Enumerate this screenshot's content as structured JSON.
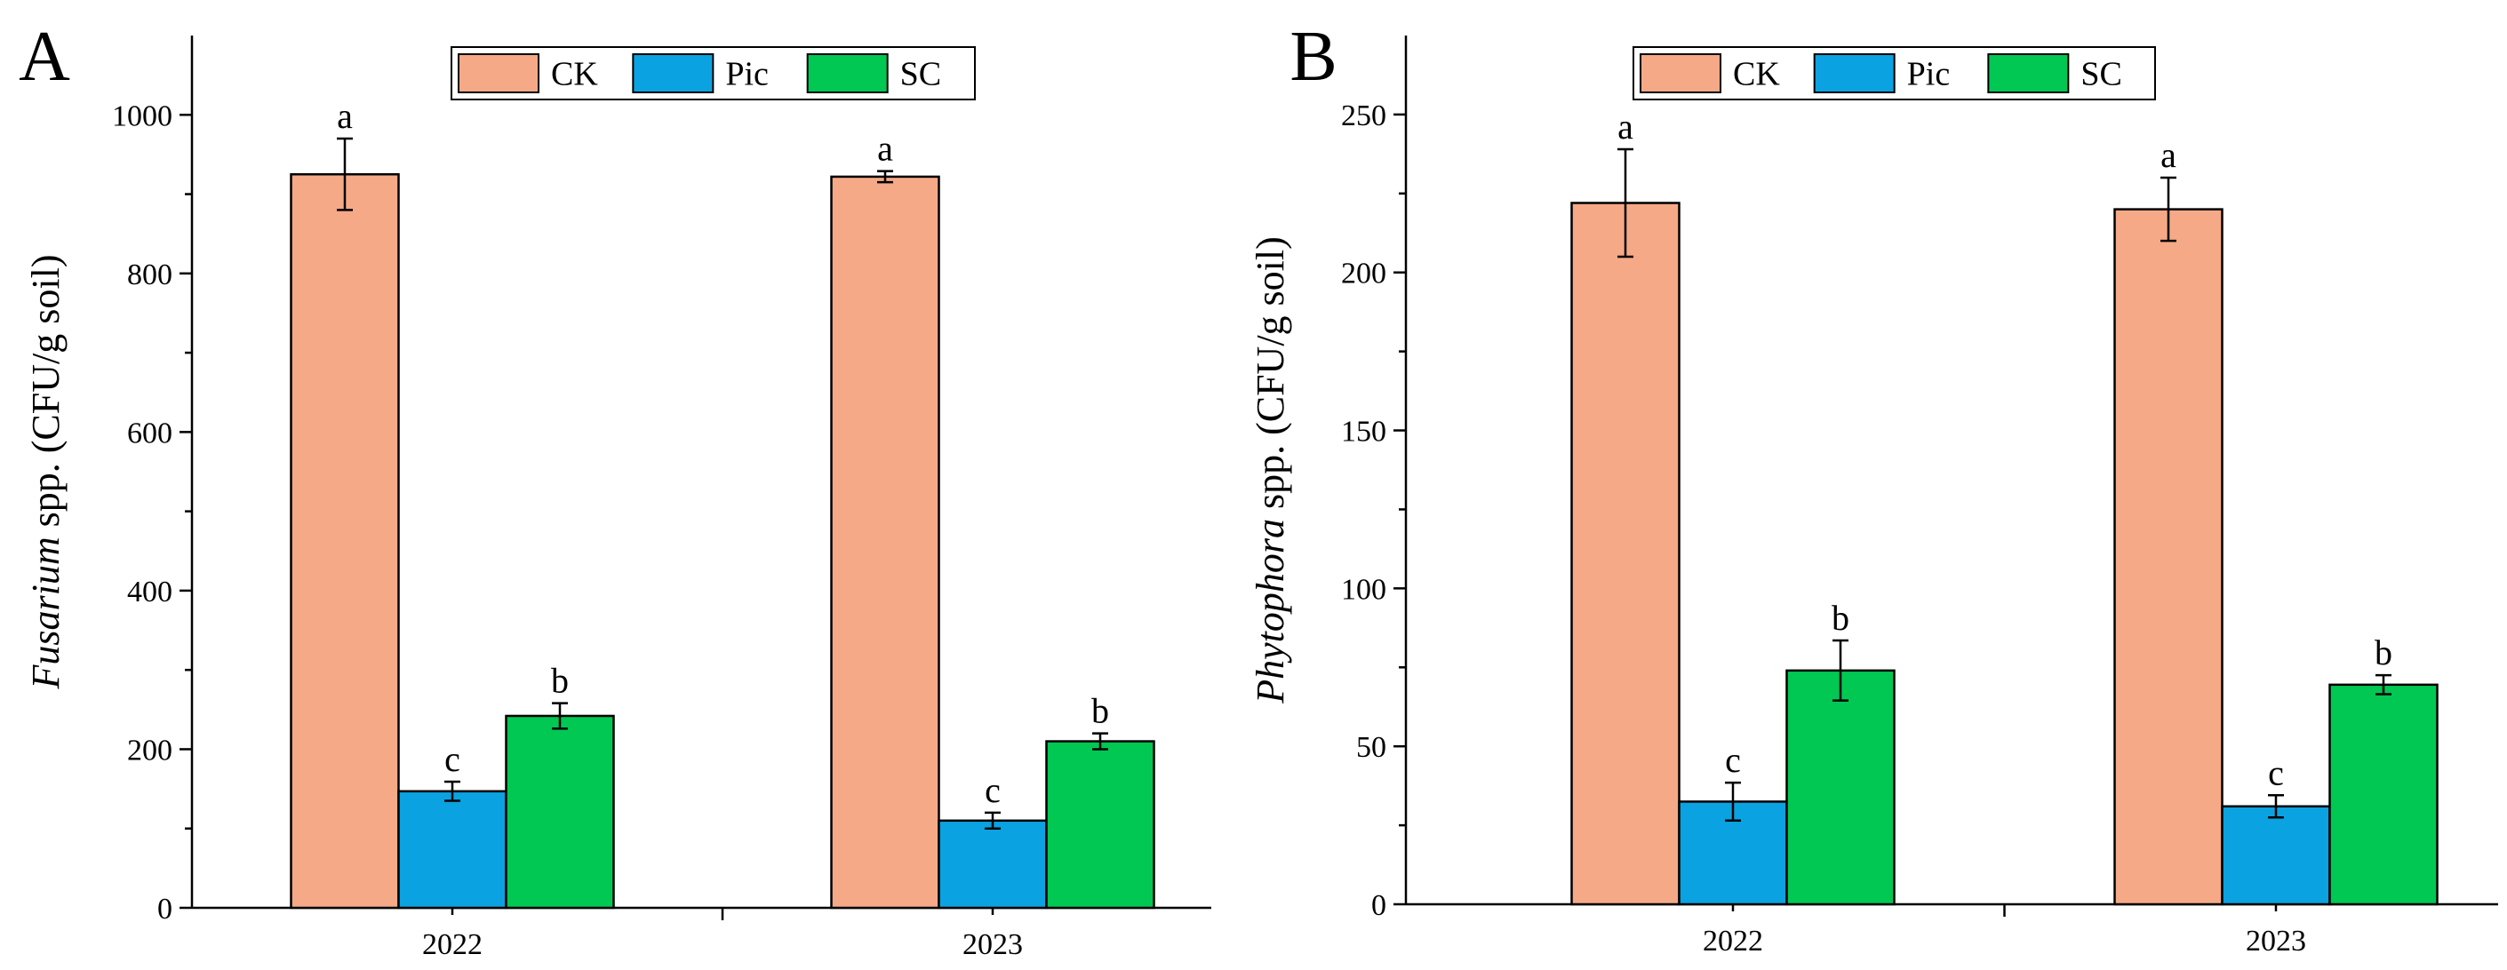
{
  "chart_data": [
    {
      "panel": "A",
      "type": "bar",
      "categories": [
        "2022",
        "2023"
      ],
      "ylabel_italic": "Fusarium",
      "ylabel_rest": " spp. (CFU/g soil)",
      "ylim": [
        0,
        1100
      ],
      "yticks": [
        0,
        200,
        400,
        600,
        800,
        1000
      ],
      "legend_position": "top-center",
      "series": [
        {
          "name": "CK",
          "color": "#F5A986",
          "values": [
            925,
            922
          ],
          "errors": [
            45,
            7
          ],
          "labels": [
            "a",
            "a"
          ]
        },
        {
          "name": "Pic",
          "color": "#0AA2E0",
          "values": [
            147,
            110
          ],
          "errors": [
            12,
            10
          ],
          "labels": [
            "c",
            "c"
          ]
        },
        {
          "name": "SC",
          "color": "#00C853",
          "values": [
            242,
            210
          ],
          "errors": [
            16,
            10
          ],
          "labels": [
            "b",
            "b"
          ]
        }
      ]
    },
    {
      "panel": "B",
      "type": "bar",
      "categories": [
        "2022",
        "2023"
      ],
      "ylabel_italic": "Phytophora",
      "ylabel_rest": " spp. (CFU/g soil)",
      "ylim": [
        0,
        275
      ],
      "yticks": [
        0,
        50,
        100,
        150,
        200,
        250
      ],
      "legend_position": "top-center",
      "series": [
        {
          "name": "CK",
          "color": "#F5A986",
          "values": [
            222,
            220
          ],
          "errors": [
            17,
            10
          ],
          "labels": [
            "a",
            "a"
          ]
        },
        {
          "name": "Pic",
          "color": "#0AA2E0",
          "values": [
            32.5,
            31
          ],
          "errors": [
            6,
            3.5
          ],
          "labels": [
            "c",
            "c"
          ]
        },
        {
          "name": "SC",
          "color": "#00C853",
          "values": [
            74,
            69.5
          ],
          "errors": [
            9.5,
            3
          ],
          "labels": [
            "b",
            "b"
          ]
        }
      ]
    }
  ]
}
